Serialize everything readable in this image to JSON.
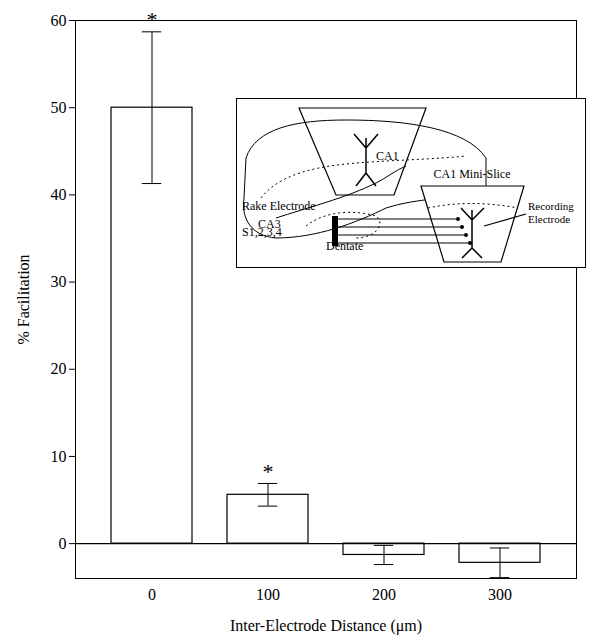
{
  "chart_data": {
    "type": "bar",
    "x_label": "Inter-Electrode Distance (μm)",
    "y_label": "% Facilitation",
    "categories": [
      "0",
      "100",
      "200",
      "300"
    ],
    "values": [
      50,
      5.6,
      -1.3,
      -2.2
    ],
    "errors": [
      8.7,
      1.3,
      1.1,
      1.7
    ],
    "color": "#ffffff",
    "ylim": [
      -4,
      60
    ],
    "yticks": [
      0,
      10,
      20,
      30,
      40,
      50,
      60
    ],
    "grid": false,
    "annotations": [
      {
        "category": "0",
        "text": "*"
      },
      {
        "category": "100",
        "text": "*"
      }
    ],
    "inset": {
      "ca1": "CA1",
      "ca3": "CA3",
      "dentate": "Dentate",
      "mini_slice": "CA1 Mini-Slice",
      "stimulating_electrode": "Rake Electrode",
      "stimulus_sites": "S1,2,3,4",
      "recording_electrode": "Recording Electrode"
    }
  }
}
